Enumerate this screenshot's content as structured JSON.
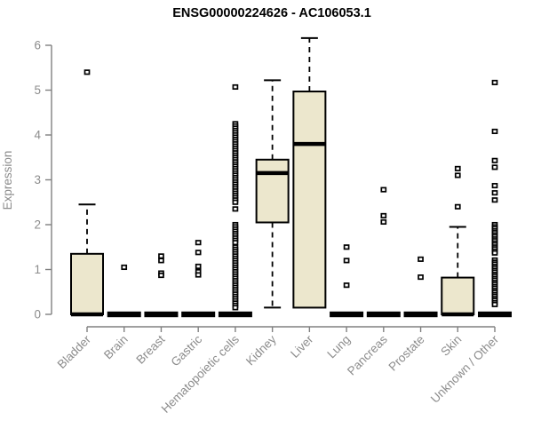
{
  "colors": {
    "box_fill": "#ece7cd",
    "box_border": "#000000",
    "median": "#000000",
    "outlier": "#000000",
    "axis_line": "#808080",
    "text_gray": "#8c8c8c",
    "title": "#000000",
    "background": "#ffffff"
  },
  "chart_data": {
    "type": "boxplot",
    "title": "ENSG00000224626 - AC106053.1",
    "ylabel": "Expression",
    "xlabel": "",
    "ylim": [
      0,
      6.2
    ],
    "yticks": [
      0,
      1,
      2,
      3,
      4,
      5,
      6
    ],
    "grid": false,
    "legend": "none",
    "categories": [
      "Bladder",
      "Brain",
      "Breast",
      "Gastric",
      "Hematopoietic cells",
      "Kidney",
      "Liver",
      "Lung",
      "Pancreas",
      "Prostate",
      "Skin",
      "Unknown / Other"
    ],
    "series": [
      {
        "name": "Bladder",
        "q1": 0,
        "median": 0,
        "q3": 1.35,
        "whisker_low": 0,
        "whisker_high": 2.45,
        "outliers": [
          5.4
        ]
      },
      {
        "name": "Brain",
        "q1": 0,
        "median": 0,
        "q3": 0,
        "whisker_low": 0,
        "whisker_high": 0,
        "outliers": [
          1.05
        ]
      },
      {
        "name": "Breast",
        "q1": 0,
        "median": 0,
        "q3": 0,
        "whisker_low": 0,
        "whisker_high": 0,
        "outliers": [
          1.3,
          1.2,
          0.92,
          0.87
        ]
      },
      {
        "name": "Gastric",
        "q1": 0,
        "median": 0,
        "q3": 0,
        "whisker_low": 0,
        "whisker_high": 0,
        "outliers": [
          1.6,
          1.38,
          1.07,
          0.95,
          0.88
        ]
      },
      {
        "name": "Hematopoietic cells",
        "q1": 0,
        "median": 0,
        "q3": 0,
        "whisker_low": 0,
        "whisker_high": 0,
        "outliers": [
          5.07,
          4.25,
          4.2,
          4.15,
          4.1,
          4.05,
          4.0,
          3.95,
          3.9,
          3.85,
          3.8,
          3.75,
          3.7,
          3.65,
          3.6,
          3.55,
          3.5,
          3.45,
          3.4,
          3.35,
          3.3,
          3.25,
          3.2,
          3.15,
          3.1,
          3.05,
          3.0,
          2.95,
          2.9,
          2.85,
          2.8,
          2.75,
          2.7,
          2.65,
          2.6,
          2.55,
          2.5,
          2.35,
          2.0,
          1.95,
          1.9,
          1.85,
          1.8,
          1.75,
          1.7,
          1.65,
          1.6,
          1.5,
          1.45,
          1.4,
          1.35,
          1.3,
          1.25,
          1.2,
          1.15,
          1.1,
          1.05,
          1.0,
          0.95,
          0.9,
          0.85,
          0.8,
          0.75,
          0.7,
          0.65,
          0.6,
          0.55,
          0.5,
          0.45,
          0.4,
          0.35,
          0.3,
          0.25,
          0.2,
          0.15
        ]
      },
      {
        "name": "Kidney",
        "q1": 2.05,
        "median": 3.15,
        "q3": 3.45,
        "whisker_low": 0.15,
        "whisker_high": 5.22,
        "outliers": []
      },
      {
        "name": "Liver",
        "q1": 0.15,
        "median": 3.8,
        "q3": 4.97,
        "whisker_low": 0.15,
        "whisker_high": 6.16,
        "outliers": []
      },
      {
        "name": "Lung",
        "q1": 0,
        "median": 0,
        "q3": 0,
        "whisker_low": 0,
        "whisker_high": 0,
        "outliers": [
          1.5,
          1.2,
          0.65
        ]
      },
      {
        "name": "Pancreas",
        "q1": 0,
        "median": 0,
        "q3": 0,
        "whisker_low": 0,
        "whisker_high": 0,
        "outliers": [
          2.78,
          2.2,
          2.06
        ]
      },
      {
        "name": "Prostate",
        "q1": 0,
        "median": 0,
        "q3": 0,
        "whisker_low": 0,
        "whisker_high": 0,
        "outliers": [
          1.23,
          0.83
        ]
      },
      {
        "name": "Skin",
        "q1": 0,
        "median": 0,
        "q3": 0.82,
        "whisker_low": 0,
        "whisker_high": 1.95,
        "outliers": [
          3.25,
          3.1,
          2.4
        ]
      },
      {
        "name": "Unknown / Other",
        "q1": 0,
        "median": 0,
        "q3": 0,
        "whisker_low": 0,
        "whisker_high": 0,
        "outliers": [
          5.17,
          4.08,
          3.43,
          3.28,
          2.87,
          2.71,
          2.55,
          2.0,
          1.95,
          1.91,
          1.86,
          1.82,
          1.77,
          1.73,
          1.68,
          1.64,
          1.59,
          1.55,
          1.5,
          1.46,
          1.41,
          1.37,
          1.21,
          1.16,
          1.12,
          1.07,
          1.03,
          0.98,
          0.94,
          0.89,
          0.85,
          0.8,
          0.76,
          0.71,
          0.67,
          0.62,
          0.58,
          0.53,
          0.49,
          0.44,
          0.4,
          0.35,
          0.31,
          0.26,
          0.22
        ]
      }
    ]
  }
}
